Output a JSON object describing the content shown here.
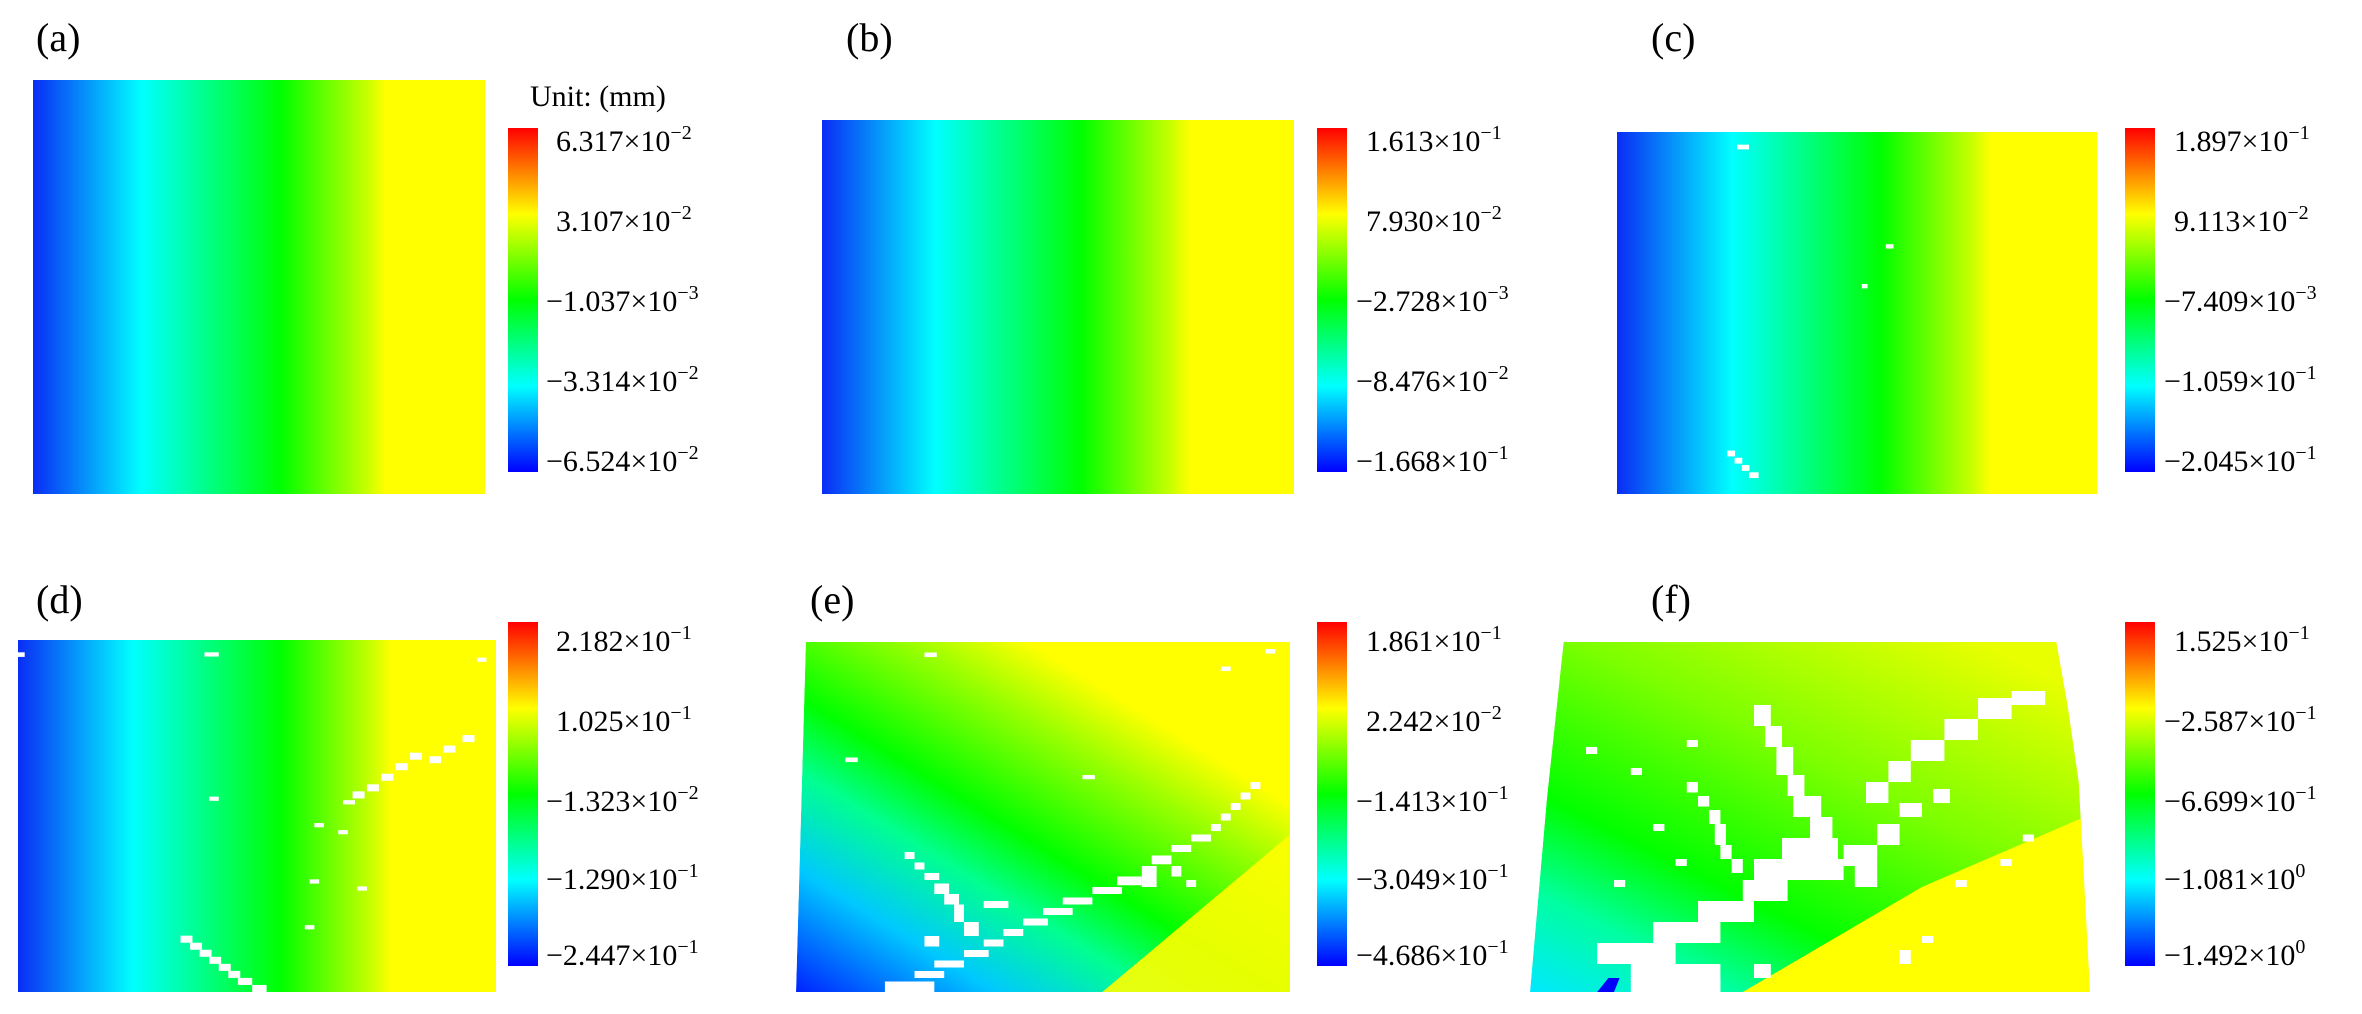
{
  "palette": [
    "#0000ff",
    "#00ffff",
    "#00ff00",
    "#ffff00",
    "#ff0000"
  ],
  "unit_label": "Unit: (mm)",
  "chart_data": [
    {
      "type": "heatmap",
      "label": "(a)",
      "colorbar": {
        "ticks": [
          {
            "mant": "6.317",
            "exp": "-2"
          },
          {
            "mant": "3.107",
            "exp": "-2"
          },
          {
            "mant": "−1.037",
            "exp": "-3"
          },
          {
            "mant": "−3.314",
            "exp": "-2"
          },
          {
            "mant": "−6.524",
            "exp": "-2"
          }
        ]
      }
    },
    {
      "type": "heatmap",
      "label": "(b)",
      "colorbar": {
        "ticks": [
          {
            "mant": "1.613",
            "exp": "-1"
          },
          {
            "mant": "7.930",
            "exp": "-2"
          },
          {
            "mant": "−2.728",
            "exp": "-3"
          },
          {
            "mant": "−8.476",
            "exp": "-2"
          },
          {
            "mant": "−1.668",
            "exp": "-1"
          }
        ]
      }
    },
    {
      "type": "heatmap",
      "label": "(c)",
      "colorbar": {
        "ticks": [
          {
            "mant": "1.897",
            "exp": "-1"
          },
          {
            "mant": "9.113",
            "exp": "-2"
          },
          {
            "mant": "−7.409",
            "exp": "-3"
          },
          {
            "mant": "−1.059",
            "exp": "-1"
          },
          {
            "mant": "−2.045",
            "exp": "-1"
          }
        ]
      }
    },
    {
      "type": "heatmap",
      "label": "(d)",
      "colorbar": {
        "ticks": [
          {
            "mant": "2.182",
            "exp": "-1"
          },
          {
            "mant": "1.025",
            "exp": "-1"
          },
          {
            "mant": "−1.323",
            "exp": "-2"
          },
          {
            "mant": "−1.290",
            "exp": "-1"
          },
          {
            "mant": "−2.447",
            "exp": "-1"
          }
        ]
      }
    },
    {
      "type": "heatmap",
      "label": "(e)",
      "colorbar": {
        "ticks": [
          {
            "mant": "1.861",
            "exp": "-1"
          },
          {
            "mant": "2.242",
            "exp": "-2"
          },
          {
            "mant": "−1.413",
            "exp": "-1"
          },
          {
            "mant": "−3.049",
            "exp": "-1"
          },
          {
            "mant": "−4.686",
            "exp": "-1"
          }
        ]
      }
    },
    {
      "type": "heatmap",
      "label": "(f)",
      "colorbar": {
        "ticks": [
          {
            "mant": "1.525",
            "exp": "-1"
          },
          {
            "mant": "−2.587",
            "exp": "-1"
          },
          {
            "mant": "−6.699",
            "exp": "-1"
          },
          {
            "mant": "−1.081",
            "exp": "0"
          },
          {
            "mant": "−1.492",
            "exp": "0"
          }
        ]
      }
    }
  ]
}
